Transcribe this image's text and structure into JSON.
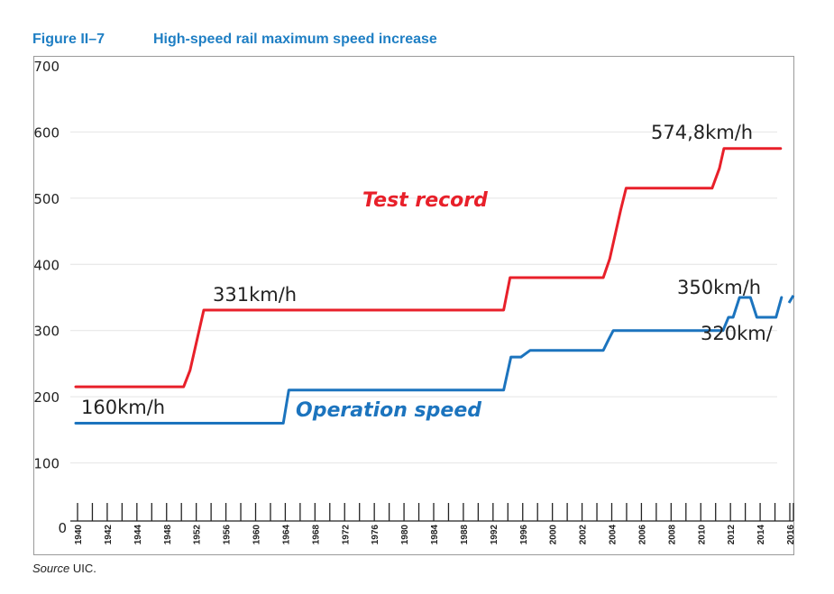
{
  "figure": {
    "label": "Figure II–7",
    "title": "High-speed rail maximum speed increase",
    "source_prefix": "Source",
    "source_text": " UIC."
  },
  "chart_data": {
    "type": "line",
    "title": "High-speed rail maximum speed increase",
    "xlabel": "",
    "ylabel": "",
    "xlim": [
      1940,
      2018.5
    ],
    "ylim": [
      0,
      700
    ],
    "yticks": [
      0,
      100,
      200,
      300,
      400,
      500,
      600,
      700
    ],
    "xticks": [
      1940,
      1942,
      1944,
      1948,
      1952,
      1956,
      1960,
      1964,
      1968,
      1972,
      1976,
      1980,
      1984,
      1988,
      1992,
      1996,
      2000,
      2002,
      2004,
      2006,
      2008,
      2010,
      2012,
      2014,
      2016
    ],
    "grid": true,
    "legend": "none",
    "series": [
      {
        "name": "Test record",
        "color": "#e8202a",
        "points": [
          [
            1940,
            215
          ],
          [
            1951.8,
            215
          ],
          [
            1952.5,
            240
          ],
          [
            1954,
            331
          ],
          [
            1986.8,
            331
          ],
          [
            1987.5,
            380
          ],
          [
            1997.7,
            380
          ],
          [
            1998.4,
            408
          ],
          [
            1999.6,
            482
          ],
          [
            2000.2,
            515
          ],
          [
            2009.6,
            515
          ],
          [
            2010.4,
            545
          ],
          [
            2010.9,
            575
          ],
          [
            2017.1,
            575
          ]
        ]
      },
      {
        "name": "Operation speed",
        "color": "#1c74be",
        "points": [
          [
            1940,
            160
          ],
          [
            1962.7,
            160
          ],
          [
            1963.3,
            210
          ],
          [
            1986.8,
            210
          ],
          [
            1987.6,
            260
          ],
          [
            1988.7,
            260
          ],
          [
            1989.7,
            270
          ],
          [
            1997.7,
            270
          ],
          [
            1998.3,
            287
          ],
          [
            1998.8,
            300
          ],
          [
            2010.8,
            300
          ],
          [
            2011.4,
            320
          ],
          [
            2011.9,
            320
          ],
          [
            2012.6,
            350
          ],
          [
            2013.8,
            350
          ],
          [
            2014.5,
            320
          ],
          [
            2016.6,
            320
          ],
          [
            2017.2,
            350
          ]
        ]
      }
    ],
    "annotations": [
      "331km/h",
      "160km/h",
      "574,8km/h",
      "350km/h",
      "320km/"
    ]
  }
}
